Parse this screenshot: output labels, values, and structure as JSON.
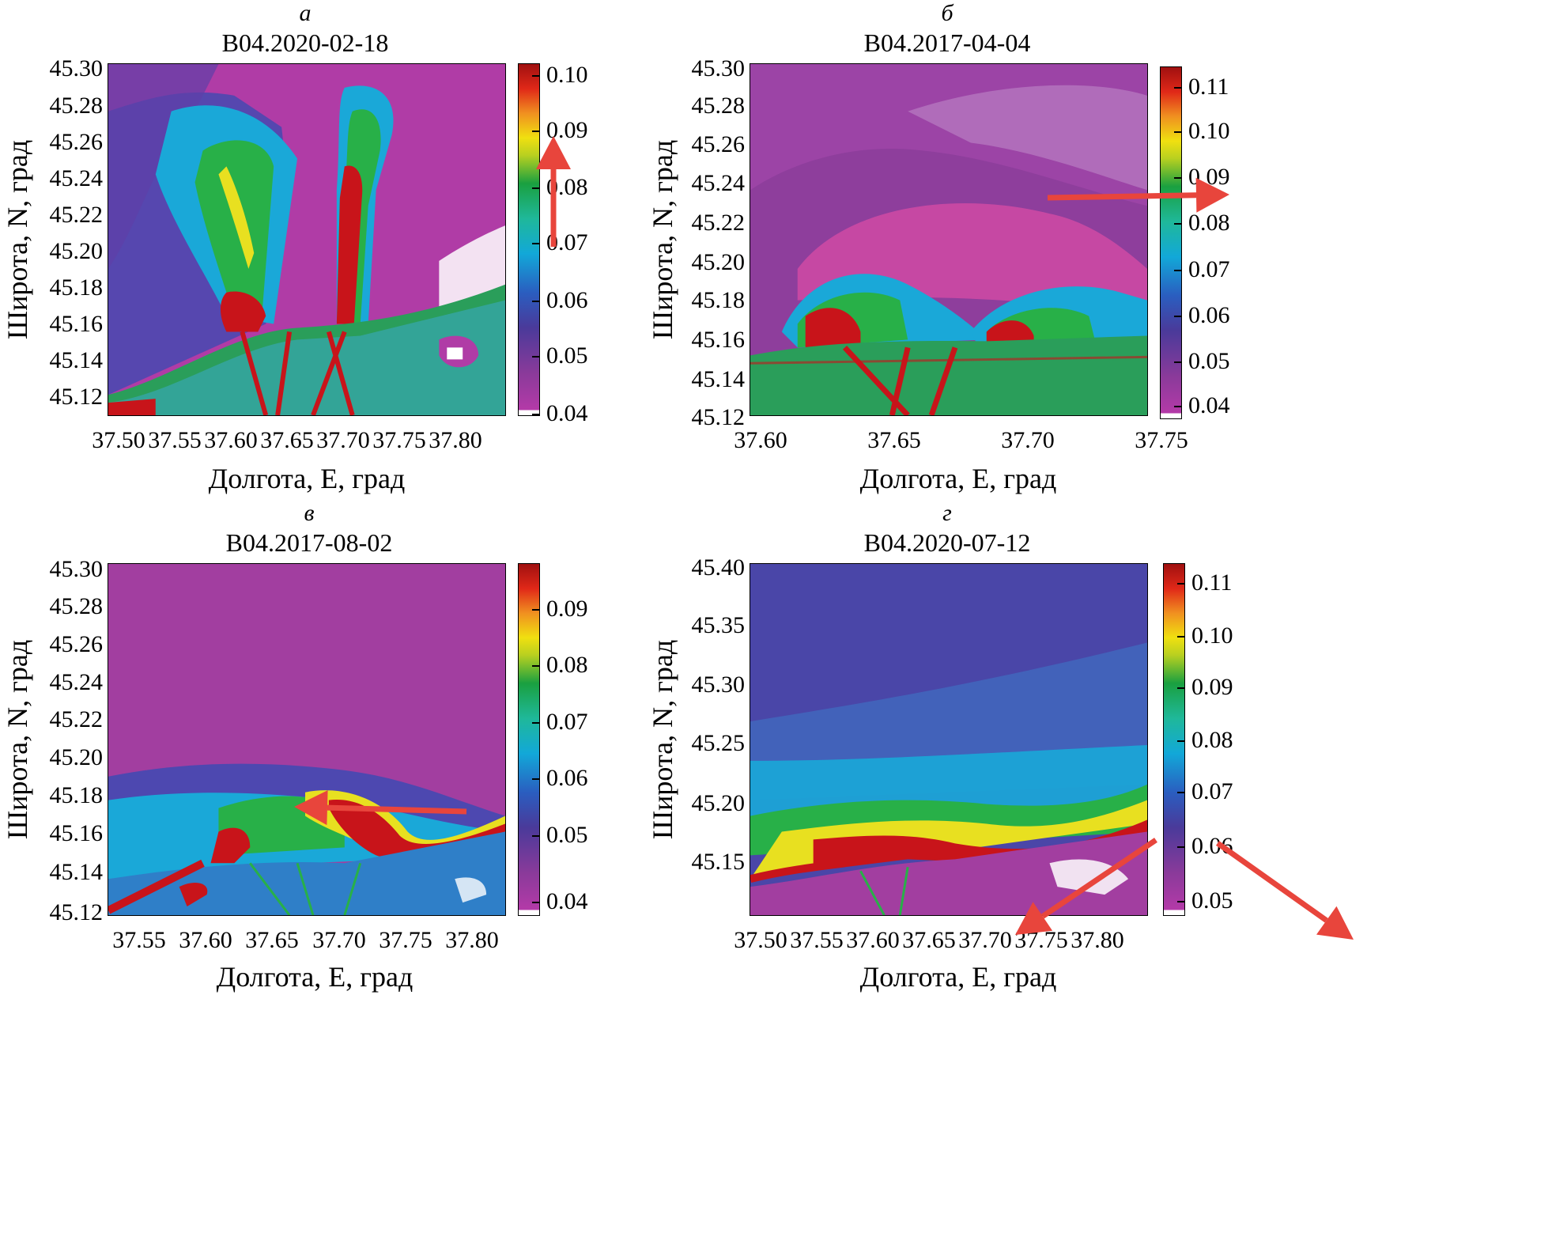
{
  "panels": [
    {
      "letter": "а",
      "title": "B04.2020-02-18",
      "xlabel": "Долгота, E, град",
      "ylabel": "Широта, N, град",
      "xticks": [
        "37.50",
        "37.55",
        "37.60",
        "37.65",
        "37.70",
        "37.75",
        "37.80"
      ],
      "yticks": [
        "45.30",
        "45.28",
        "45.26",
        "45.24",
        "45.22",
        "45.20",
        "45.18",
        "45.16",
        "45.14",
        "45.12"
      ],
      "cbticks": [
        "0.10",
        "0.09",
        "0.08",
        "0.07",
        "0.06",
        "0.05",
        "0.04"
      ],
      "arrow": "up"
    },
    {
      "letter": "б",
      "title": "B04.2017-04-04",
      "xlabel": "Долгота, E, град",
      "ylabel": "Широта, N, град",
      "xticks": [
        "37.60",
        "37.65",
        "37.70",
        "37.75"
      ],
      "yticks": [
        "45.30",
        "45.28",
        "45.26",
        "45.24",
        "45.22",
        "45.20",
        "45.18",
        "45.16",
        "45.14",
        "45.12"
      ],
      "cbticks": [
        "0.11",
        "0.10",
        "0.09",
        "0.08",
        "0.07",
        "0.06",
        "0.05",
        "0.04"
      ],
      "arrow": "right"
    },
    {
      "letter": "в",
      "title": "B04.2017-08-02",
      "xlabel": "Долгота, E, град",
      "ylabel": "Широта, N, град",
      "xticks": [
        "37.55",
        "37.60",
        "37.65",
        "37.70",
        "37.75",
        "37.80"
      ],
      "yticks": [
        "45.30",
        "45.28",
        "45.26",
        "45.24",
        "45.22",
        "45.20",
        "45.18",
        "45.16",
        "45.14",
        "45.12"
      ],
      "cbticks": [
        "0.09",
        "0.08",
        "0.07",
        "0.06",
        "0.05",
        "0.04"
      ],
      "arrow": "left"
    },
    {
      "letter": "г",
      "title": "B04.2020-07-12",
      "xlabel": "Долгота, E, град",
      "ylabel": "Широта, N, град",
      "xticks": [
        "37.50",
        "37.55",
        "37.60",
        "37.65",
        "37.70",
        "37.75",
        "37.80"
      ],
      "yticks": [
        "45.40",
        "45.35",
        "45.30",
        "45.25",
        "45.20",
        "45.15"
      ],
      "cbticks": [
        "0.11",
        "0.10",
        "0.09",
        "0.08",
        "0.07",
        "0.06",
        "0.05"
      ],
      "arrow": "split"
    }
  ],
  "colors": {
    "arrow": "#e8453c",
    "seaA": "#b53fa8",
    "seaB": "#a13c9e",
    "seaD": "#4a45a8",
    "plumeRed": "#c8141a",
    "plumeGreen": "#28b048",
    "plumeCyan": "#1aaed8",
    "plumeYellow": "#e8e020"
  }
}
